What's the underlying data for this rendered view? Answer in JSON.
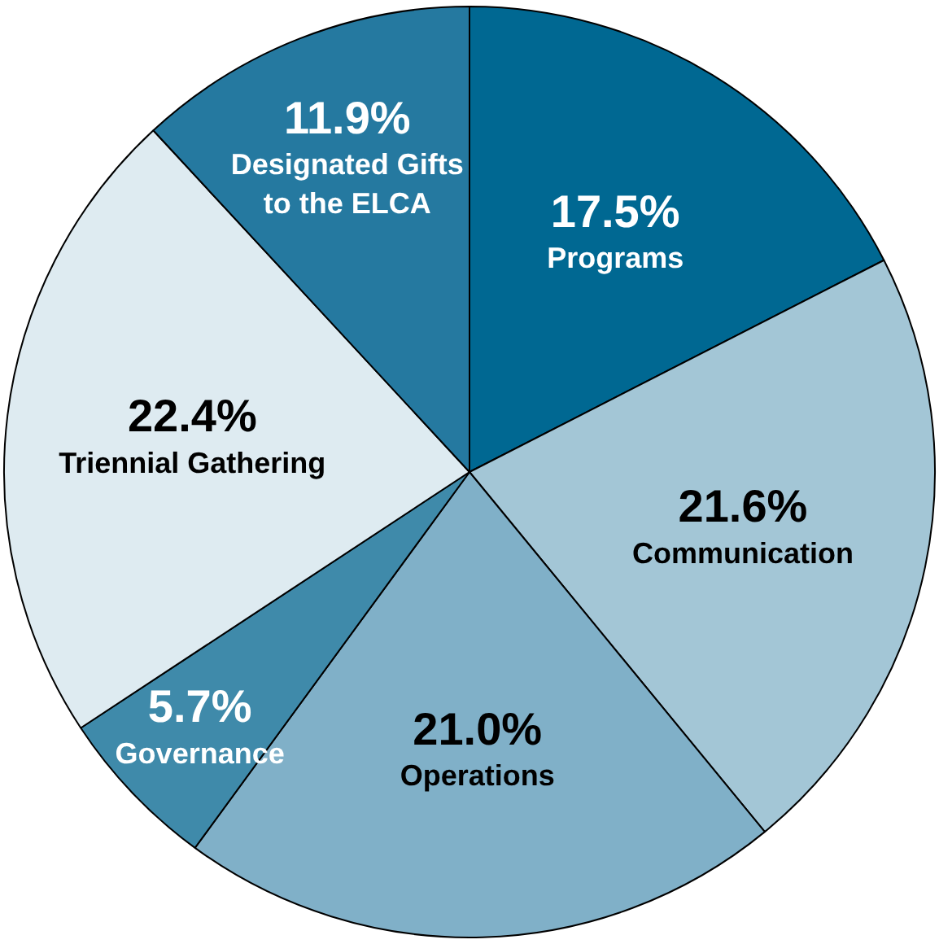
{
  "chart_data": {
    "type": "pie",
    "categories": [
      "Programs",
      "Communication",
      "Operations",
      "Governance",
      "Triennial Gathering",
      "Designated Gifts to the ELCA"
    ],
    "values": [
      17.5,
      21.6,
      21.0,
      5.7,
      22.4,
      11.9
    ],
    "value_labels": [
      "17.5%",
      "21.6%",
      "21.0%",
      "5.7%",
      "22.4%",
      "11.9%"
    ],
    "colors": [
      "#006892",
      "#a3c6d6",
      "#80b0c8",
      "#3f8aaa",
      "#deebf1",
      "#2579a0"
    ],
    "legend": false
  }
}
